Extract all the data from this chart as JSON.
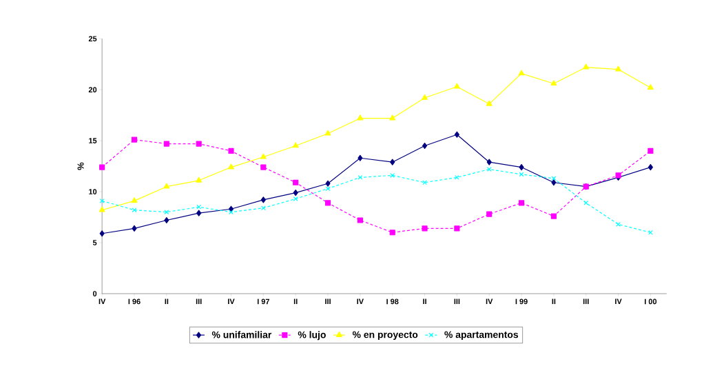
{
  "chart_data": {
    "type": "line",
    "ylabel": "%",
    "categories": [
      "IV",
      "I 96",
      "II",
      "III",
      "IV",
      "I 97",
      "II",
      "III",
      "IV",
      "I 98",
      "II",
      "III",
      "IV",
      "I 99",
      "II",
      "III",
      "IV",
      "I 00"
    ],
    "series": [
      {
        "name": "% unifamiliar",
        "color": "#000080",
        "marker": "diamond",
        "line_style": "solid",
        "values": [
          5.9,
          6.4,
          7.2,
          7.9,
          8.3,
          9.2,
          9.9,
          10.8,
          13.3,
          12.9,
          14.5,
          15.6,
          12.9,
          12.4,
          10.9,
          10.5,
          11.4,
          12.4
        ]
      },
      {
        "name": "% lujo",
        "color": "#ff00ff",
        "marker": "square",
        "line_style": "dashed",
        "values": [
          12.4,
          15.1,
          14.7,
          14.7,
          14.0,
          12.4,
          10.9,
          8.9,
          7.2,
          6.0,
          6.4,
          6.4,
          7.8,
          8.9,
          7.6,
          10.5,
          11.6,
          14.0
        ]
      },
      {
        "name": "% en proyecto",
        "color": "#ffff00",
        "marker": "triangle",
        "line_style": "solid",
        "values": [
          8.2,
          9.1,
          10.5,
          11.1,
          12.4,
          13.4,
          14.5,
          15.7,
          17.2,
          17.2,
          19.2,
          20.3,
          18.6,
          21.6,
          20.6,
          22.2,
          22.0,
          20.2
        ]
      },
      {
        "name": "% apartamentos",
        "color": "#00ffff",
        "marker": "cross",
        "line_style": "dashed",
        "values": [
          9.1,
          8.2,
          8.0,
          8.5,
          8.0,
          8.4,
          9.3,
          10.3,
          11.4,
          11.6,
          10.9,
          11.4,
          12.2,
          11.7,
          11.3,
          8.9,
          6.8,
          6.0
        ]
      }
    ],
    "ylim": [
      0,
      25
    ],
    "yticks": [
      0,
      5,
      10,
      15,
      20,
      25
    ],
    "grid": false,
    "legend": "bottom"
  }
}
